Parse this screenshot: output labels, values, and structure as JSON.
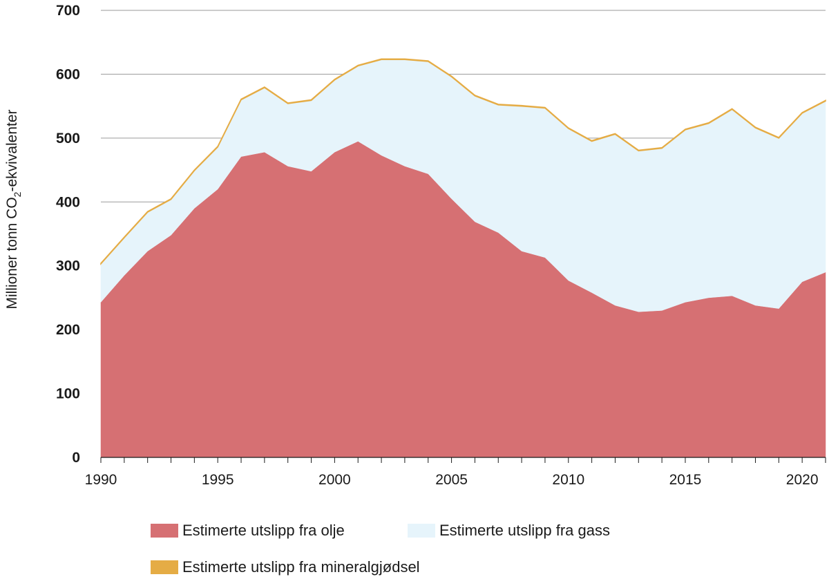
{
  "chart_data": {
    "type": "area",
    "stacked": true,
    "x": [
      1990,
      1991,
      1992,
      1993,
      1994,
      1995,
      1996,
      1997,
      1998,
      1999,
      2000,
      2001,
      2002,
      2003,
      2004,
      2005,
      2006,
      2007,
      2008,
      2009,
      2010,
      2011,
      2012,
      2013,
      2014,
      2015,
      2016,
      2017,
      2018,
      2019,
      2020,
      2021
    ],
    "series": [
      {
        "name": "Estimerte utslipp fra olje",
        "color": "#d67073",
        "values": [
          243,
          285,
          323,
          348,
          390,
          420,
          471,
          478,
          456,
          448,
          478,
          495,
          473,
          456,
          444,
          405,
          369,
          352,
          323,
          313,
          277,
          258,
          238,
          228,
          230,
          243,
          250,
          253,
          238,
          233,
          275,
          290
        ]
      },
      {
        "name": "Estimerte utslipp fra gass",
        "color": "#e6f4fb",
        "values": [
          60,
          59,
          61,
          56,
          59,
          66,
          89,
          101,
          98,
          111,
          113,
          118,
          150,
          167,
          176,
          191,
          197,
          200,
          227,
          234,
          238,
          237,
          268,
          252,
          254,
          270,
          273,
          292,
          278,
          267,
          264,
          268
        ]
      },
      {
        "name": "Estimerte utslipp fra mineralgjødsel",
        "color": "#e5ac45",
        "values": [
          1,
          1,
          1,
          1,
          1,
          1,
          1,
          1,
          1,
          1,
          1,
          1,
          1,
          1,
          1,
          1,
          1,
          1,
          1,
          1,
          1,
          1,
          1,
          1,
          1,
          1,
          1,
          1,
          1,
          1,
          1,
          1
        ]
      }
    ],
    "ylabel_main": "Millioner tonn CO",
    "ylabel_sub": "2",
    "ylabel_tail": "-ekvivalenter",
    "xlabel": "",
    "ylim": [
      0,
      700
    ],
    "yticks": [
      "0",
      "100",
      "200",
      "300",
      "400",
      "500",
      "600",
      "700"
    ],
    "xticks": [
      "1990",
      "1995",
      "2000",
      "2005",
      "2010",
      "2015",
      "2020"
    ],
    "grid": true,
    "legend_position": "bottom"
  }
}
